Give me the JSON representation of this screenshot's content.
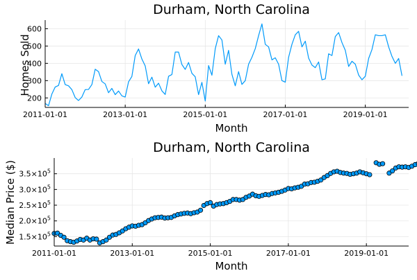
{
  "colors": {
    "series": "#009AFA",
    "marker_edge": "#000000",
    "axis": "#000000",
    "grid": "#E6E6E6",
    "background": "#FFFFFF"
  },
  "chart_data": [
    {
      "type": "line",
      "title": "Durham, North Carolina",
      "xlabel": "Month",
      "ylabel": "Homes Sold",
      "grid": true,
      "legend": "none",
      "xlim": [
        "2011-01-01",
        "2020-02-01"
      ],
      "ylim": [
        145,
        650
      ],
      "xticks": [
        "2011-01-01",
        "2013-01-01",
        "2015-01-01",
        "2017-01-01",
        "2019-01-01"
      ],
      "yticks": [
        200,
        300,
        400,
        500,
        600
      ],
      "ytick_labels": [
        "200",
        "300",
        "400",
        "500",
        "600"
      ],
      "x_start": "2011-01-01",
      "x_step": "1 month",
      "values": [
        168,
        155,
        222,
        263,
        272,
        340,
        277,
        270,
        248,
        202,
        185,
        205,
        248,
        249,
        277,
        366,
        352,
        295,
        281,
        230,
        255,
        219,
        240,
        212,
        205,
        293,
        324,
        445,
        483,
        425,
        385,
        282,
        320,
        262,
        285,
        241,
        220,
        325,
        335,
        465,
        465,
        393,
        365,
        405,
        342,
        322,
        219,
        290,
        182,
        387,
        331,
        485,
        560,
        535,
        395,
        475,
        336,
        270,
        352,
        278,
        300,
        395,
        435,
        485,
        560,
        628,
        510,
        495,
        420,
        432,
        395,
        300,
        291,
        435,
        510,
        565,
        585,
        495,
        528,
        430,
        390,
        375,
        408,
        305,
        310,
        455,
        445,
        555,
        578,
        520,
        475,
        382,
        412,
        395,
        332,
        305,
        325,
        428,
        480,
        565,
        560,
        560,
        565,
        495,
        440,
        400,
        428,
        328
      ]
    },
    {
      "type": "scatter",
      "title": "Durham, North Carolina",
      "xlabel": "Month",
      "ylabel": "Median Price ($)",
      "grid": true,
      "legend": "none",
      "xlim": [
        "2011-01-01",
        "2020-02-01"
      ],
      "ylim": [
        120000,
        400000
      ],
      "xticks": [
        "2011-01-01",
        "2013-01-01",
        "2015-01-01",
        "2017-01-01",
        "2019-01-01"
      ],
      "yticks": [
        150000,
        200000,
        250000,
        300000,
        350000
      ],
      "ytick_labels": [
        {
          "mantissa": "1.5×10",
          "exp": "5"
        },
        {
          "mantissa": "2.0×10",
          "exp": "5"
        },
        {
          "mantissa": "2.5×10",
          "exp": "5"
        },
        {
          "mantissa": "3.0×10",
          "exp": "5"
        },
        {
          "mantissa": "3.5×10",
          "exp": "5"
        }
      ],
      "x_start": "2011-01-01",
      "x_step": "1 month",
      "values": [
        160000,
        161000,
        154000,
        148000,
        137000,
        134000,
        132000,
        136000,
        141000,
        139000,
        145000,
        139000,
        143000,
        142000,
        130000,
        134000,
        139000,
        148000,
        155000,
        157000,
        162000,
        168000,
        175000,
        180000,
        184000,
        183000,
        186000,
        188000,
        194000,
        201000,
        206000,
        210000,
        211000,
        212000,
        209000,
        210000,
        211000,
        216000,
        220000,
        222000,
        224000,
        225000,
        223000,
        226000,
        228000,
        234000,
        249000,
        255000,
        258000,
        247000,
        252000,
        254000,
        255000,
        258000,
        262000,
        268000,
        268000,
        266000,
        268000,
        275000,
        279000,
        285000,
        280000,
        278000,
        281000,
        284000,
        283000,
        287000,
        289000,
        291000,
        294000,
        298000,
        303000,
        302000,
        305000,
        307000,
        310000,
        317000,
        318000,
        322000,
        323000,
        326000,
        330000,
        338000,
        344000,
        351000,
        356000,
        358000,
        354000,
        352000,
        351000,
        348000,
        350000,
        352000,
        356000,
        353000,
        350000,
        347000,
        null,
        385000,
        380000,
        382000,
        null,
        352000,
        359000,
        368000,
        372000,
        371000,
        372000,
        370000,
        374000,
        379000,
        383000,
        390000
      ]
    }
  ]
}
